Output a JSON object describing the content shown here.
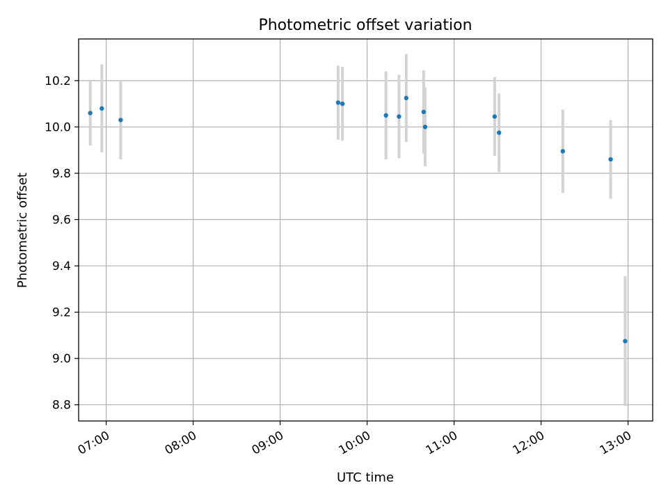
{
  "chart_data": {
    "type": "scatter",
    "title": "Photometric offset variation",
    "xlabel": "UTC time",
    "ylabel": "Photometric offset",
    "x_unit": "UTC time (HH:MM)",
    "xlim": [
      "06:41",
      "13:17"
    ],
    "ylim": [
      8.73,
      10.38
    ],
    "grid": true,
    "xticks": [
      "07:00",
      "08:00",
      "09:00",
      "10:00",
      "11:00",
      "12:00",
      "13:00"
    ],
    "yticks": [
      8.8,
      9.0,
      9.2,
      9.4,
      9.6,
      9.8,
      10.0,
      10.2
    ],
    "marker_color": "#1f77b4",
    "errorbar_color": "#d3d3d3",
    "points": [
      {
        "x": "06:49",
        "y": 10.06,
        "yerr": 0.14
      },
      {
        "x": "06:57",
        "y": 10.08,
        "yerr": 0.19
      },
      {
        "x": "07:10",
        "y": 10.03,
        "yerr": 0.17
      },
      {
        "x": "09:40",
        "y": 10.105,
        "yerr": 0.16
      },
      {
        "x": "09:43",
        "y": 10.1,
        "yerr": 0.16
      },
      {
        "x": "10:13",
        "y": 10.05,
        "yerr": 0.19
      },
      {
        "x": "10:22",
        "y": 10.045,
        "yerr": 0.18
      },
      {
        "x": "10:27",
        "y": 10.125,
        "yerr": 0.19
      },
      {
        "x": "10:39",
        "y": 10.065,
        "yerr": 0.18
      },
      {
        "x": "10:40",
        "y": 10.0,
        "yerr": 0.17
      },
      {
        "x": "11:28",
        "y": 10.045,
        "yerr": 0.17
      },
      {
        "x": "11:31",
        "y": 9.975,
        "yerr": 0.17
      },
      {
        "x": "12:15",
        "y": 9.895,
        "yerr": 0.18
      },
      {
        "x": "12:48",
        "y": 9.86,
        "yerr": 0.17
      },
      {
        "x": "12:58",
        "y": 9.075,
        "yerr": 0.28
      }
    ]
  }
}
